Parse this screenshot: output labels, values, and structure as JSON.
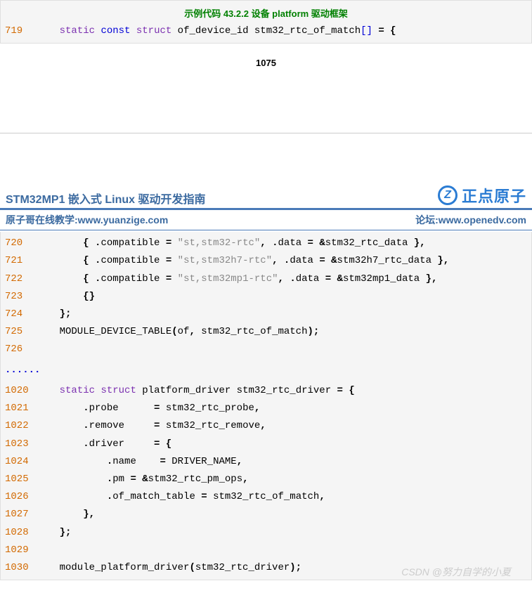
{
  "colors": {
    "title_green": "#008000",
    "lineno_orange": "#d26900",
    "keyword_purple": "#7b30b0",
    "keyword_blue": "#0000d6",
    "text_black": "#000000",
    "string_gray": "#888888",
    "operator_bold": "#000000",
    "header_blue": "#3b6aa0",
    "logo_blue": "#2b7cd3",
    "link_blue": "#3b6aa0",
    "dots_blue": "#0000d6",
    "bg_code": "#f5f5f5",
    "watermark": "#cccccc"
  },
  "top_block": {
    "title": "示例代码 43.2.2  设备  platform  驱动框架",
    "line": {
      "num": "719",
      "tokens": [
        {
          "t": "    ",
          "c": "text_black"
        },
        {
          "t": "static",
          "c": "keyword_purple"
        },
        {
          "t": " ",
          "c": "text_black"
        },
        {
          "t": "const",
          "c": "keyword_blue"
        },
        {
          "t": " ",
          "c": "text_black"
        },
        {
          "t": "struct",
          "c": "keyword_purple"
        },
        {
          "t": " of_device_id stm32_rtc_of_match",
          "c": "text_black"
        },
        {
          "t": "[]",
          "c": "keyword_blue"
        },
        {
          "t": " ",
          "c": "text_black"
        },
        {
          "t": "=",
          "c": "operator_bold",
          "b": true
        },
        {
          "t": " ",
          "c": "text_black"
        },
        {
          "t": "{",
          "c": "operator_bold",
          "b": true
        }
      ]
    }
  },
  "page_number": "1075",
  "header": {
    "doc_title": "STM32MP1 嵌入式 Linux 驱动开发指南",
    "logo_text": "正点原子",
    "left_link_label": "原子哥在线教学:",
    "left_link_url": "www.yuanzige.com",
    "right_link_label": "论坛:",
    "right_link_url": "www.openedv.com"
  },
  "main_block": {
    "lines": [
      {
        "num": "720",
        "tokens": [
          {
            "t": "        ",
            "c": "text_black"
          },
          {
            "t": "{",
            "c": "operator_bold",
            "b": true
          },
          {
            "t": " ",
            "c": "text_black"
          },
          {
            "t": ".",
            "c": "operator_bold",
            "b": true
          },
          {
            "t": "compatible ",
            "c": "text_black"
          },
          {
            "t": "=",
            "c": "operator_bold",
            "b": true
          },
          {
            "t": " ",
            "c": "text_black"
          },
          {
            "t": "\"st,stm32-rtc\"",
            "c": "string_gray"
          },
          {
            "t": ",",
            "c": "operator_bold",
            "b": true
          },
          {
            "t": " ",
            "c": "text_black"
          },
          {
            "t": ".",
            "c": "operator_bold",
            "b": true
          },
          {
            "t": "data ",
            "c": "text_black"
          },
          {
            "t": "=",
            "c": "operator_bold",
            "b": true
          },
          {
            "t": " ",
            "c": "text_black"
          },
          {
            "t": "&",
            "c": "operator_bold",
            "b": true
          },
          {
            "t": "stm32_rtc_data ",
            "c": "text_black"
          },
          {
            "t": "},",
            "c": "operator_bold",
            "b": true
          }
        ]
      },
      {
        "num": "721",
        "tokens": [
          {
            "t": "        ",
            "c": "text_black"
          },
          {
            "t": "{",
            "c": "operator_bold",
            "b": true
          },
          {
            "t": " ",
            "c": "text_black"
          },
          {
            "t": ".",
            "c": "operator_bold",
            "b": true
          },
          {
            "t": "compatible ",
            "c": "text_black"
          },
          {
            "t": "=",
            "c": "operator_bold",
            "b": true
          },
          {
            "t": " ",
            "c": "text_black"
          },
          {
            "t": "\"st,stm32h7-rtc\"",
            "c": "string_gray"
          },
          {
            "t": ",",
            "c": "operator_bold",
            "b": true
          },
          {
            "t": " ",
            "c": "text_black"
          },
          {
            "t": ".",
            "c": "operator_bold",
            "b": true
          },
          {
            "t": "data ",
            "c": "text_black"
          },
          {
            "t": "=",
            "c": "operator_bold",
            "b": true
          },
          {
            "t": " ",
            "c": "text_black"
          },
          {
            "t": "&",
            "c": "operator_bold",
            "b": true
          },
          {
            "t": "stm32h7_rtc_data ",
            "c": "text_black"
          },
          {
            "t": "},",
            "c": "operator_bold",
            "b": true
          }
        ]
      },
      {
        "num": "722",
        "tokens": [
          {
            "t": "        ",
            "c": "text_black"
          },
          {
            "t": "{",
            "c": "operator_bold",
            "b": true
          },
          {
            "t": " ",
            "c": "text_black"
          },
          {
            "t": ".",
            "c": "operator_bold",
            "b": true
          },
          {
            "t": "compatible ",
            "c": "text_black"
          },
          {
            "t": "=",
            "c": "operator_bold",
            "b": true
          },
          {
            "t": " ",
            "c": "text_black"
          },
          {
            "t": "\"st,stm32mp1-rtc\"",
            "c": "string_gray"
          },
          {
            "t": ",",
            "c": "operator_bold",
            "b": true
          },
          {
            "t": " ",
            "c": "text_black"
          },
          {
            "t": ".",
            "c": "operator_bold",
            "b": true
          },
          {
            "t": "data ",
            "c": "text_black"
          },
          {
            "t": "=",
            "c": "operator_bold",
            "b": true
          },
          {
            "t": " ",
            "c": "text_black"
          },
          {
            "t": "&",
            "c": "operator_bold",
            "b": true
          },
          {
            "t": "stm32mp1_data ",
            "c": "text_black"
          },
          {
            "t": "},",
            "c": "operator_bold",
            "b": true
          }
        ]
      },
      {
        "num": "723",
        "tokens": [
          {
            "t": "        ",
            "c": "text_black"
          },
          {
            "t": "{}",
            "c": "operator_bold",
            "b": true
          }
        ]
      },
      {
        "num": "724",
        "tokens": [
          {
            "t": "    ",
            "c": "text_black"
          },
          {
            "t": "};",
            "c": "operator_bold",
            "b": true
          }
        ]
      },
      {
        "num": "725",
        "tokens": [
          {
            "t": "    MODULE_DEVICE_TABLE",
            "c": "text_black"
          },
          {
            "t": "(",
            "c": "operator_bold",
            "b": true
          },
          {
            "t": "of",
            "c": "text_black"
          },
          {
            "t": ",",
            "c": "operator_bold",
            "b": true
          },
          {
            "t": " stm32_rtc_of_match",
            "c": "text_black"
          },
          {
            "t": ");",
            "c": "operator_bold",
            "b": true
          }
        ]
      },
      {
        "num": "726",
        "tokens": []
      }
    ],
    "ellipsis": "......",
    "lines2": [
      {
        "num": "1020",
        "tokens": [
          {
            "t": "    ",
            "c": "text_black"
          },
          {
            "t": "static",
            "c": "keyword_purple"
          },
          {
            "t": " ",
            "c": "text_black"
          },
          {
            "t": "struct",
            "c": "keyword_purple"
          },
          {
            "t": " platform_driver stm32_rtc_driver ",
            "c": "text_black"
          },
          {
            "t": "=",
            "c": "operator_bold",
            "b": true
          },
          {
            "t": " ",
            "c": "text_black"
          },
          {
            "t": "{",
            "c": "operator_bold",
            "b": true
          }
        ]
      },
      {
        "num": "1021",
        "tokens": [
          {
            "t": "        ",
            "c": "text_black"
          },
          {
            "t": ".",
            "c": "operator_bold",
            "b": true
          },
          {
            "t": "probe      ",
            "c": "text_black"
          },
          {
            "t": "=",
            "c": "operator_bold",
            "b": true
          },
          {
            "t": " stm32_rtc_probe",
            "c": "text_black"
          },
          {
            "t": ",",
            "c": "operator_bold",
            "b": true
          }
        ]
      },
      {
        "num": "1022",
        "tokens": [
          {
            "t": "        ",
            "c": "text_black"
          },
          {
            "t": ".",
            "c": "operator_bold",
            "b": true
          },
          {
            "t": "remove     ",
            "c": "text_black"
          },
          {
            "t": "=",
            "c": "operator_bold",
            "b": true
          },
          {
            "t": " stm32_rtc_remove",
            "c": "text_black"
          },
          {
            "t": ",",
            "c": "operator_bold",
            "b": true
          }
        ]
      },
      {
        "num": "1023",
        "tokens": [
          {
            "t": "        ",
            "c": "text_black"
          },
          {
            "t": ".",
            "c": "operator_bold",
            "b": true
          },
          {
            "t": "driver     ",
            "c": "text_black"
          },
          {
            "t": "=",
            "c": "operator_bold",
            "b": true
          },
          {
            "t": " ",
            "c": "text_black"
          },
          {
            "t": "{",
            "c": "operator_bold",
            "b": true
          }
        ]
      },
      {
        "num": "1024",
        "tokens": [
          {
            "t": "            ",
            "c": "text_black"
          },
          {
            "t": ".",
            "c": "operator_bold",
            "b": true
          },
          {
            "t": "name    ",
            "c": "text_black"
          },
          {
            "t": "=",
            "c": "operator_bold",
            "b": true
          },
          {
            "t": " DRIVER_NAME",
            "c": "text_black"
          },
          {
            "t": ",",
            "c": "operator_bold",
            "b": true
          }
        ]
      },
      {
        "num": "1025",
        "tokens": [
          {
            "t": "            ",
            "c": "text_black"
          },
          {
            "t": ".",
            "c": "operator_bold",
            "b": true
          },
          {
            "t": "pm ",
            "c": "text_black"
          },
          {
            "t": "=",
            "c": "operator_bold",
            "b": true
          },
          {
            "t": " ",
            "c": "text_black"
          },
          {
            "t": "&",
            "c": "operator_bold",
            "b": true
          },
          {
            "t": "stm32_rtc_pm_ops",
            "c": "text_black"
          },
          {
            "t": ",",
            "c": "operator_bold",
            "b": true
          }
        ]
      },
      {
        "num": "1026",
        "tokens": [
          {
            "t": "            ",
            "c": "text_black"
          },
          {
            "t": ".",
            "c": "operator_bold",
            "b": true
          },
          {
            "t": "of_match_table ",
            "c": "text_black"
          },
          {
            "t": "=",
            "c": "operator_bold",
            "b": true
          },
          {
            "t": " stm32_rtc_of_match",
            "c": "text_black"
          },
          {
            "t": ",",
            "c": "operator_bold",
            "b": true
          }
        ]
      },
      {
        "num": "1027",
        "tokens": [
          {
            "t": "        ",
            "c": "text_black"
          },
          {
            "t": "},",
            "c": "operator_bold",
            "b": true
          }
        ]
      },
      {
        "num": "1028",
        "tokens": [
          {
            "t": "    ",
            "c": "text_black"
          },
          {
            "t": "};",
            "c": "operator_bold",
            "b": true
          }
        ]
      },
      {
        "num": "1029",
        "tokens": []
      },
      {
        "num": "1030",
        "tokens": [
          {
            "t": "    module_platform_driver",
            "c": "text_black"
          },
          {
            "t": "(",
            "c": "operator_bold",
            "b": true
          },
          {
            "t": "stm32_rtc_driver",
            "c": "text_black"
          },
          {
            "t": ");",
            "c": "operator_bold",
            "b": true
          }
        ]
      }
    ]
  },
  "watermark": "CSDN @努力自学的小夏"
}
